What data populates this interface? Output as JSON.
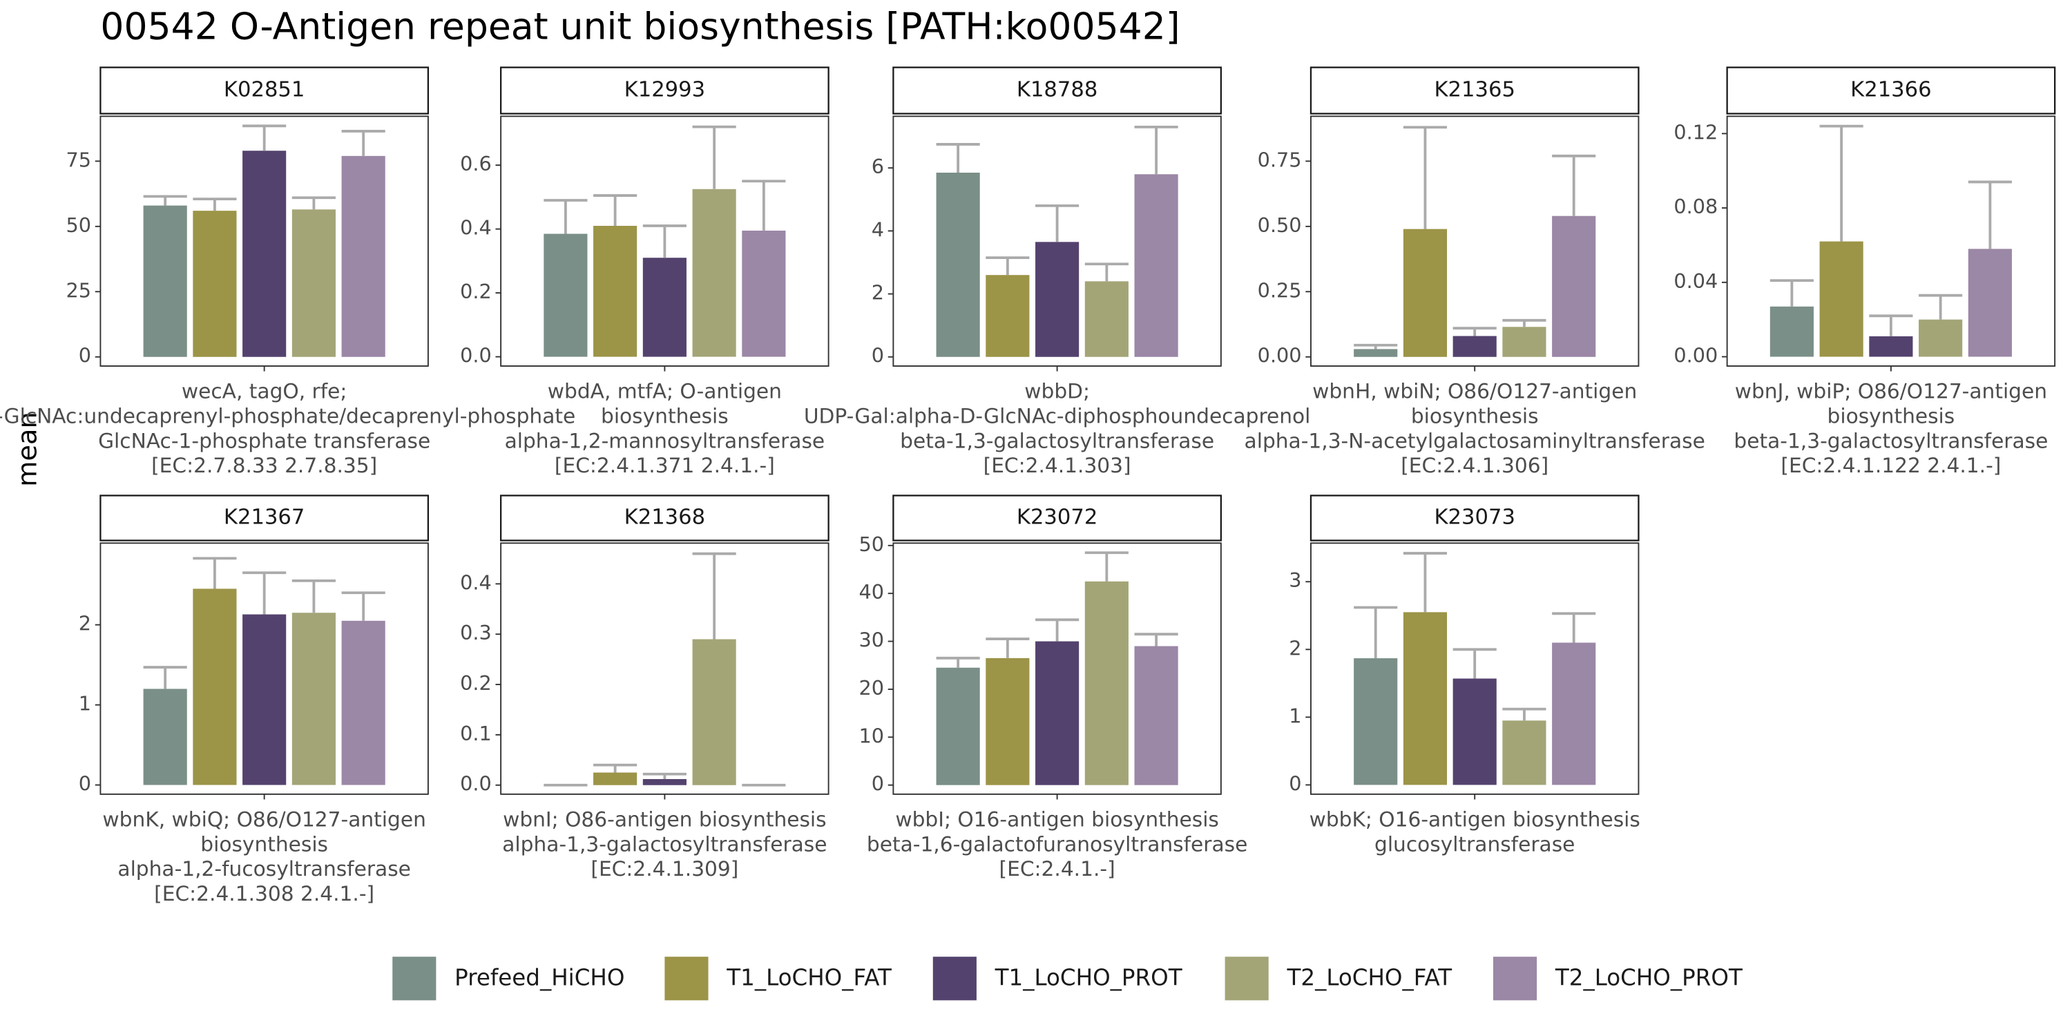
{
  "title": "00542 O-Antigen repeat unit biosynthesis [PATH:ko00542]",
  "ylabel": "mean",
  "legend": [
    {
      "name": "Prefeed_HiCHO",
      "color": "#7a8f87"
    },
    {
      "name": "T1_LoCHO_FAT",
      "color": "#9c9447"
    },
    {
      "name": "T1_LoCHO_PROT",
      "color": "#54426e"
    },
    {
      "name": "T2_LoCHO_FAT",
      "color": "#a3a577"
    },
    {
      "name": "T2_LoCHO_PROT",
      "color": "#9b87a6"
    }
  ],
  "chart_data": [
    {
      "type": "bar",
      "title": "K02851",
      "xlabel": [
        "wecA, tagO, rfe;",
        "UDP-GlcNAc:undecaprenyl-phosphate/decaprenyl-phosphate",
        "GlcNAc-1-phosphate transferase",
        "[EC:2.7.8.33 2.7.8.35]"
      ],
      "values": [
        58,
        56,
        79,
        56.5,
        77
      ],
      "errors": [
        3.5,
        4.5,
        9.5,
        4.5,
        9.5
      ],
      "ylim": [
        -3.5,
        92.2
      ],
      "yticks": [
        0,
        25,
        50,
        75
      ]
    },
    {
      "type": "bar",
      "title": "K12993",
      "xlabel": [
        "wbdA, mtfA; O-antigen",
        "biosynthesis",
        "alpha-1,2-mannosyltransferase",
        "[EC:2.4.1.371 2.4.1.-]"
      ],
      "values": [
        0.385,
        0.41,
        0.31,
        0.525,
        0.395
      ],
      "errors": [
        0.105,
        0.095,
        0.1,
        0.195,
        0.155
      ],
      "ylim": [
        -0.029,
        0.753
      ],
      "yticks": [
        {
          "value": 0,
          "label": "0.0"
        },
        0.2,
        0.4,
        0.6
      ]
    },
    {
      "type": "bar",
      "title": "K18788",
      "xlabel": [
        "wbbD;",
        "UDP-Gal:alpha-D-GlcNAc-diphosphoundecaprenol",
        "beta-1,3-galactosyltransferase",
        "[EC:2.4.1.303]"
      ],
      "values": [
        5.85,
        2.6,
        3.65,
        2.4,
        5.8
      ],
      "errors": [
        0.9,
        0.55,
        1.15,
        0.55,
        1.5
      ],
      "ylim": [
        -0.29,
        7.64
      ],
      "yticks": [
        0,
        2,
        4,
        6
      ]
    },
    {
      "type": "bar",
      "title": "K21365",
      "xlabel": [
        "wbnH, wbiN; O86/O127-antigen",
        "biosynthesis",
        "alpha-1,3-N-acetylgalactosaminyltransferase",
        "[EC:2.4.1.306]"
      ],
      "values": [
        0.03,
        0.49,
        0.08,
        0.115,
        0.54
      ],
      "errors": [
        0.015,
        0.39,
        0.03,
        0.025,
        0.23
      ],
      "ylim": [
        -0.035,
        0.922
      ],
      "yticks": [
        {
          "value": 0,
          "label": "0.00"
        },
        0.25,
        {
          "value": 0.5,
          "label": "0.50"
        },
        0.75
      ]
    },
    {
      "type": "bar",
      "title": "K21366",
      "xlabel": [
        "wbnJ, wbiP; O86/O127-antigen",
        "biosynthesis",
        "beta-1,3-galactosyltransferase",
        "[EC:2.4.1.122 2.4.1.-]"
      ],
      "values": [
        0.027,
        0.062,
        0.011,
        0.02,
        0.058
      ],
      "errors": [
        0.014,
        0.062,
        0.011,
        0.013,
        0.036
      ],
      "ylim": [
        -0.005,
        0.1293
      ],
      "yticks": [
        {
          "value": 0,
          "label": "0.00"
        },
        0.04,
        0.08,
        0.12
      ]
    },
    {
      "type": "bar",
      "title": "K21367",
      "xlabel": [
        "wbnK, wbiQ; O86/O127-antigen",
        "biosynthesis",
        "alpha-1,2-fucosyltransferase",
        "[EC:2.4.1.308 2.4.1.-]"
      ],
      "values": [
        1.2,
        2.45,
        2.13,
        2.15,
        2.05
      ],
      "errors": [
        0.27,
        0.38,
        0.52,
        0.4,
        0.35
      ],
      "ylim": [
        -0.115,
        3.02
      ],
      "yticks": [
        0,
        1,
        2
      ]
    },
    {
      "type": "bar",
      "title": "K21368",
      "xlabel": [
        "wbnI; O86-antigen biosynthesis",
        "alpha-1,3-galactosyltransferase",
        "[EC:2.4.1.309]"
      ],
      "values": [
        0,
        0.025,
        0.012,
        0.29,
        0
      ],
      "errors": [
        0,
        0.015,
        0.01,
        0.17,
        0
      ],
      "ylim": [
        -0.018,
        0.481
      ],
      "yticks": [
        {
          "value": 0,
          "label": "0.0"
        },
        0.1,
        0.2,
        0.3,
        0.4
      ]
    },
    {
      "type": "bar",
      "title": "K23072",
      "xlabel": [
        "wbbI; O16-antigen biosynthesis",
        "beta-1,6-galactofuranosyltransferase",
        "[EC:2.4.1.-]"
      ],
      "values": [
        24.5,
        26.5,
        30,
        42.5,
        29
      ],
      "errors": [
        2,
        4,
        4.5,
        6,
        2.5
      ],
      "ylim": [
        -1.9,
        50.5
      ],
      "yticks": [
        0,
        10,
        20,
        30,
        40,
        50
      ]
    },
    {
      "type": "bar",
      "title": "K23073",
      "xlabel": [
        "wbbK; O16-antigen biosynthesis",
        "glucosyltransferase"
      ],
      "values": [
        1.87,
        2.55,
        1.57,
        0.95,
        2.1
      ],
      "errors": [
        0.75,
        0.87,
        0.43,
        0.17,
        0.43
      ],
      "ylim": [
        -0.137,
        3.57
      ],
      "yticks": [
        0,
        1,
        2,
        3
      ]
    }
  ]
}
